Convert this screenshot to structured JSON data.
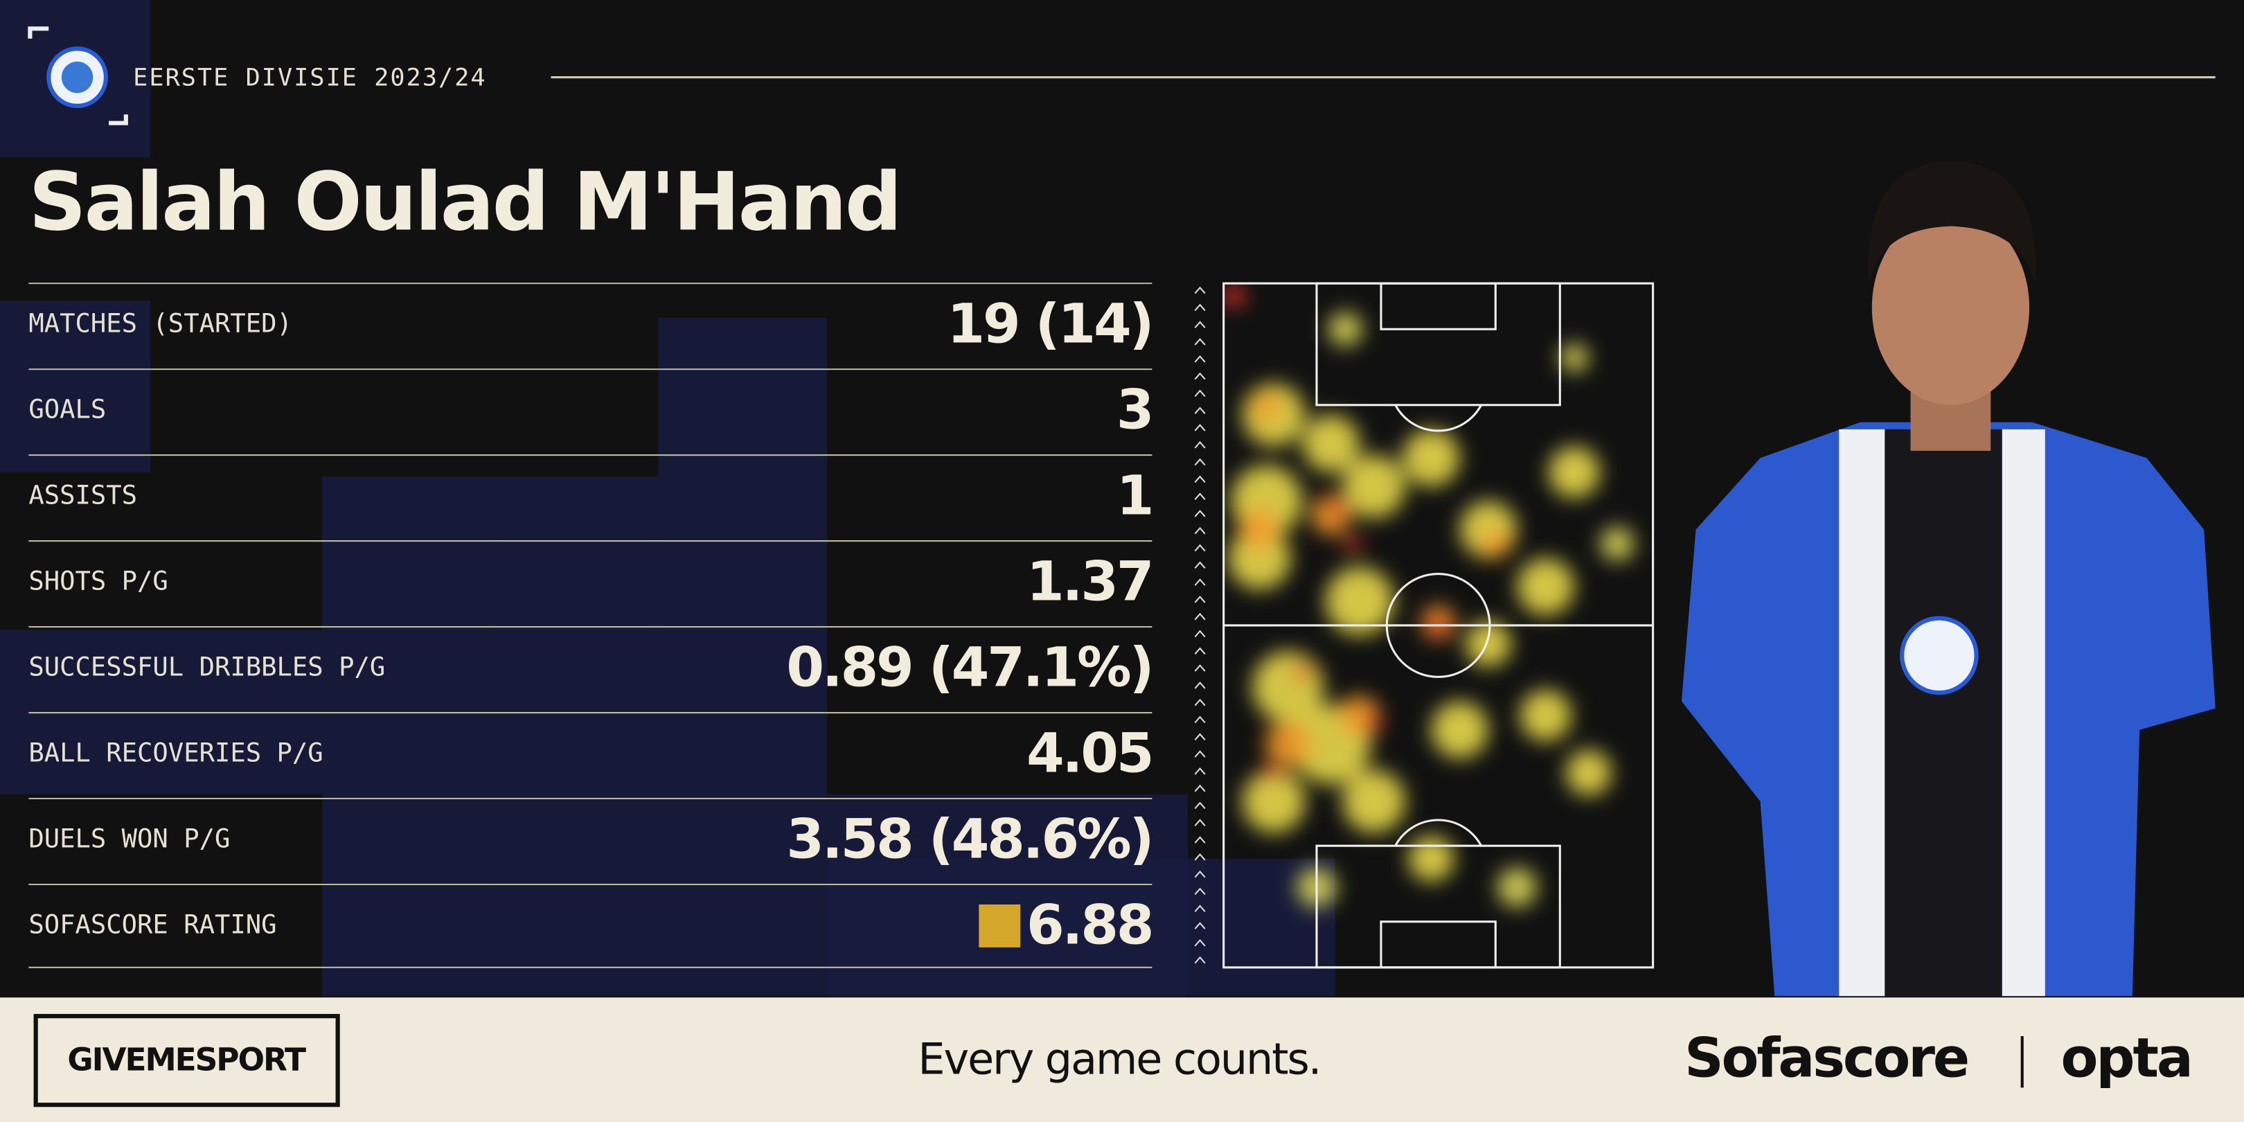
{
  "header": {
    "league": "EERSTE DIVISIE 2023/24"
  },
  "player": {
    "name": "Salah Oulad M'Hand"
  },
  "stats": {
    "rows": [
      {
        "label": "MATCHES (STARTED)",
        "value": "19 (14)"
      },
      {
        "label": "GOALS",
        "value": "3"
      },
      {
        "label": "ASSISTS",
        "value": "1"
      },
      {
        "label": "SHOTS P/G",
        "value": "1.37"
      },
      {
        "label": "SUCCESSFUL DRIBBLES P/G",
        "value": "0.89 (47.1%)"
      },
      {
        "label": "BALL RECOVERIES P/G",
        "value": "4.05"
      },
      {
        "label": "DUELS WON P/G",
        "value": "3.58 (48.6%)"
      },
      {
        "label": "SOFASCORE RATING",
        "value": "6.88"
      }
    ]
  },
  "footer": {
    "brand": "GIVEMESPORT",
    "tagline": "Every game counts.",
    "partners": [
      "Sofascore",
      "opta"
    ]
  }
}
